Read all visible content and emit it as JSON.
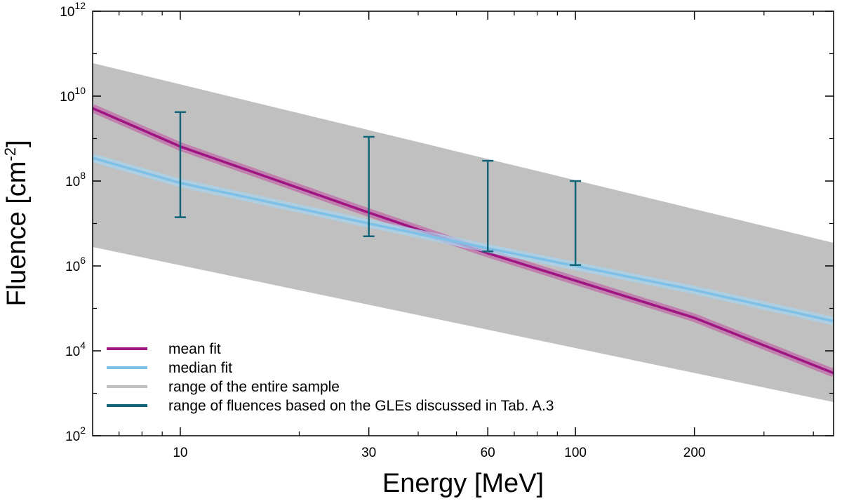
{
  "chart_data": {
    "type": "line",
    "xscale": "log",
    "yscale": "log",
    "xlabel": "Energy [MeV]",
    "ylabel_main": "Fluence [cm",
    "ylabel_sup": "-2",
    "ylabel_end": "]",
    "xlim": [
      6,
      450
    ],
    "ylim": [
      100,
      1000000000000
    ],
    "x_ticks": [
      {
        "value": 10,
        "label": "10"
      },
      {
        "value": 30,
        "label": "30"
      },
      {
        "value": 60,
        "label": "60"
      },
      {
        "value": 100,
        "label": "100"
      },
      {
        "value": 200,
        "label": "200"
      }
    ],
    "y_ticks": [
      {
        "value": 100,
        "base": "10",
        "exp": "2"
      },
      {
        "value": 10000,
        "base": "10",
        "exp": "4"
      },
      {
        "value": 1000000,
        "base": "10",
        "exp": "6"
      },
      {
        "value": 100000000,
        "base": "10",
        "exp": "8"
      },
      {
        "value": 10000000000,
        "base": "10",
        "exp": "10"
      },
      {
        "value": 1000000000000,
        "base": "10",
        "exp": "12"
      }
    ],
    "range_band": {
      "name": "range of the entire sample",
      "color": "#c0c0c0",
      "upper": [
        [
          6,
          60000000000
        ],
        [
          450,
          3500000
        ]
      ],
      "lower": [
        [
          6,
          2800000
        ],
        [
          450,
          620
        ]
      ]
    },
    "series": [
      {
        "name": "mean fit",
        "color": "#9e1482",
        "band_color": "#c06ca8",
        "points": [
          [
            6,
            5200000000
          ],
          [
            10,
            650000000
          ],
          [
            30,
            18000000
          ],
          [
            60,
            2000000
          ],
          [
            100,
            450000
          ],
          [
            200,
            60000
          ],
          [
            450,
            3000
          ]
        ]
      },
      {
        "name": "median fit",
        "color": "#7ec0e6",
        "band_color": "#a8d3ec",
        "points": [
          [
            6,
            350000000
          ],
          [
            10,
            90000000
          ],
          [
            30,
            10000000
          ],
          [
            60,
            2600000
          ],
          [
            100,
            1000000
          ],
          [
            200,
            270000
          ],
          [
            450,
            50000
          ]
        ]
      }
    ],
    "error_bars": {
      "name": "range of fluences based on the GLEs discussed in Tab. A.3",
      "color": "#126478",
      "bars": [
        {
          "x": 10,
          "low": 14000000,
          "high": 4200000000
        },
        {
          "x": 30,
          "low": 5000000,
          "high": 1100000000
        },
        {
          "x": 60,
          "low": 2200000,
          "high": 300000000
        },
        {
          "x": 100,
          "low": 1050000,
          "high": 100000000
        }
      ]
    },
    "legend": {
      "position": "bottom-left",
      "items": [
        {
          "label": "mean fit",
          "color": "#9e1482"
        },
        {
          "label": "median fit",
          "color": "#7ec0e6"
        },
        {
          "label": "range of the entire sample",
          "color": "#c0c0c0"
        },
        {
          "label": "range of fluences based on the GLEs discussed in Tab. A.3",
          "color": "#126478"
        }
      ]
    }
  }
}
